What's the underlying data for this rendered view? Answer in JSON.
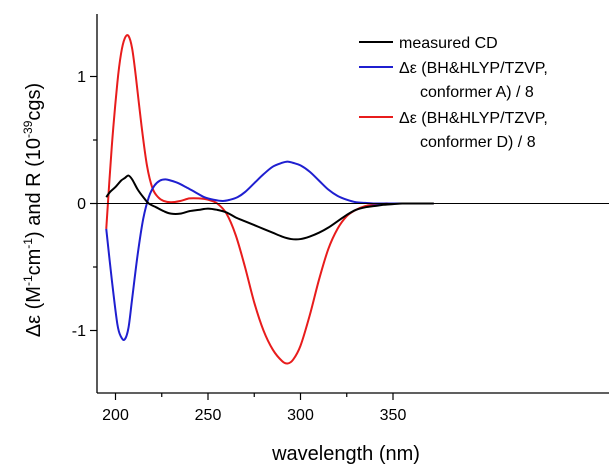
{
  "chart_data": {
    "type": "line",
    "xlabel": "wavelength (nm)",
    "ylabel": {
      "prefix": "Δε (M",
      "exp1": "-1",
      "mid1": "cm",
      "exp2": "-1",
      "mid2": ") and R (10",
      "exp3": "-39",
      "suffix": "cgs)"
    },
    "xlim": [
      195,
      372
    ],
    "ylim": [
      -1.5,
      1.5
    ],
    "xticks": [
      200,
      250,
      300,
      350
    ],
    "yticks": [
      -1,
      0,
      1
    ],
    "ytick_labels": [
      "-1",
      "0",
      "1"
    ],
    "zero_line": true,
    "legend_position": "top-right",
    "series": [
      {
        "name": "measured CD",
        "color": "#000000",
        "x": [
          195,
          197,
          200,
          203,
          205,
          207,
          209,
          212,
          215,
          218,
          222,
          226,
          230,
          235,
          240,
          245,
          250,
          255,
          260,
          265,
          270,
          275,
          280,
          285,
          290,
          295,
          300,
          305,
          310,
          315,
          320,
          325,
          330,
          335,
          340,
          345,
          350,
          355,
          360,
          365,
          372
        ],
        "y": [
          0.05,
          0.09,
          0.13,
          0.18,
          0.2,
          0.22,
          0.19,
          0.11,
          0.05,
          0.0,
          -0.03,
          -0.06,
          -0.08,
          -0.08,
          -0.06,
          -0.05,
          -0.04,
          -0.05,
          -0.07,
          -0.11,
          -0.14,
          -0.17,
          -0.2,
          -0.23,
          -0.26,
          -0.28,
          -0.28,
          -0.26,
          -0.23,
          -0.19,
          -0.14,
          -0.09,
          -0.05,
          -0.03,
          -0.02,
          -0.01,
          -0.005,
          0.0,
          0.0,
          0.0,
          0.0
        ]
      },
      {
        "name": "Δε (BH&HLYP/TZVP, conformer A) / 8",
        "color": "#1f1fd0",
        "x": [
          195,
          198,
          201,
          203,
          205,
          207,
          209,
          212,
          215,
          218,
          221,
          224,
          227,
          230,
          234,
          238,
          243,
          248,
          253,
          258,
          262,
          266,
          270,
          275,
          280,
          285,
          290,
          293,
          296,
          300,
          305,
          310,
          315,
          320,
          325,
          330,
          335,
          340,
          345,
          350,
          360,
          372
        ],
        "y": [
          -0.2,
          -0.6,
          -0.95,
          -1.05,
          -1.07,
          -0.98,
          -0.75,
          -0.4,
          -0.12,
          0.05,
          0.14,
          0.18,
          0.19,
          0.18,
          0.16,
          0.13,
          0.09,
          0.05,
          0.03,
          0.02,
          0.03,
          0.05,
          0.09,
          0.16,
          0.23,
          0.29,
          0.32,
          0.33,
          0.32,
          0.3,
          0.25,
          0.18,
          0.11,
          0.06,
          0.03,
          0.01,
          0.005,
          0.0,
          0.0,
          0.0,
          0.0,
          0.0
        ]
      },
      {
        "name": "Δε (BH&HLYP/TZVP, conformer D) / 8",
        "color": "#e81c1c",
        "x": [
          195,
          198,
          201,
          203,
          205,
          207,
          209,
          211,
          214,
          217,
          220,
          223,
          226,
          230,
          235,
          240,
          245,
          250,
          255,
          260,
          265,
          270,
          275,
          280,
          285,
          290,
          293,
          296,
          300,
          305,
          310,
          315,
          320,
          325,
          330,
          335,
          340,
          345,
          350,
          360,
          372
        ],
        "y": [
          -0.2,
          0.45,
          0.95,
          1.18,
          1.3,
          1.32,
          1.22,
          1.0,
          0.62,
          0.3,
          0.12,
          0.05,
          0.02,
          0.01,
          0.02,
          0.04,
          0.04,
          0.03,
          0.0,
          -0.08,
          -0.25,
          -0.5,
          -0.78,
          -1.0,
          -1.15,
          -1.24,
          -1.26,
          -1.23,
          -1.12,
          -0.88,
          -0.6,
          -0.36,
          -0.2,
          -0.1,
          -0.05,
          -0.02,
          -0.01,
          0.0,
          0.0,
          0.0,
          0.0
        ]
      }
    ]
  },
  "legend": [
    {
      "lines": [
        "measured CD"
      ],
      "color": "#000000"
    },
    {
      "lines": [
        "Δε (BH&HLYP/TZVP,",
        "conformer A) / 8"
      ],
      "color": "#1f1fd0"
    },
    {
      "lines": [
        "Δε (BH&HLYP/TZVP,",
        "conformer D) / 8"
      ],
      "color": "#e81c1c"
    }
  ]
}
